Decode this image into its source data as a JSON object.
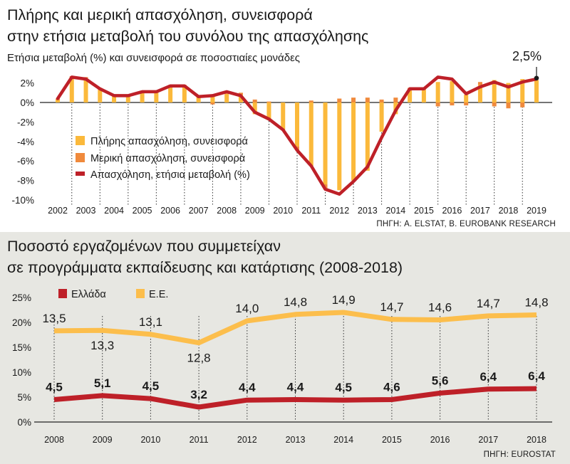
{
  "colors": {
    "full_time": "#fbb93b",
    "part_time": "#f08a3c",
    "employment_line": "#be2028",
    "greece_line": "#be2028",
    "eu_line": "#fcbe4c",
    "bottom_bg": "#e7e7e2",
    "grid": "#333333"
  },
  "chart_data": [
    {
      "type": "bar",
      "title": "Πλήρης και μερική απασχόληση, συνεισφορά στην ετήσια μεταβολή του συνόλου της απασχόλησης",
      "title_lines": [
        "Πλήρης και μερική απασχόληση, συνεισφορά",
        "στην ετήσια μεταβολή του συνόλου της απασχόλησης"
      ],
      "subtitle": "Ετήσια μεταβολή (%) και συνεισφορά σε ποσοστιαίες μονάδες",
      "source": "ΠΗΓΗ: A. ELSTAT, B. EUROBANK RESEARCH",
      "year_labels": [
        "2002",
        "2003",
        "2004",
        "2005",
        "2006",
        "2007",
        "2008",
        "2009",
        "2010",
        "2011",
        "2012",
        "2013",
        "2014",
        "2015",
        "2016",
        "2017",
        "2018",
        "2019"
      ],
      "y_ticks": [
        "2%",
        "0%",
        "-2%",
        "-4%",
        "-6%",
        "-8%",
        "-10%"
      ],
      "ylim": [
        -10,
        3
      ],
      "legend_items": [
        "Πλήρης απασχόληση, συνεισφορά",
        "Μερική απασχόληση, συνεισφορά",
        "Απασχόληση, ετήσια μεταβολή (%)"
      ],
      "x": [
        2002,
        2002.5,
        2003,
        2003.5,
        2004,
        2004.5,
        2005,
        2005.5,
        2006,
        2006.5,
        2007,
        2007.5,
        2008,
        2008.5,
        2009,
        2009.5,
        2010,
        2010.5,
        2011,
        2011.5,
        2012,
        2012.5,
        2013,
        2013.5,
        2014,
        2014.5,
        2015,
        2015.5,
        2016,
        2016.5,
        2017,
        2017.5,
        2018,
        2018.5,
        2019
      ],
      "series": [
        {
          "name": "Πλήρης απασχόληση, συνεισφορά",
          "values": [
            0.3,
            2.5,
            2.3,
            1.3,
            0.7,
            0.7,
            1.0,
            1.0,
            1.5,
            1.6,
            0.6,
            0.6,
            0.9,
            0.8,
            -1.2,
            -1.8,
            -2.7,
            -4.5,
            -6.5,
            -8.4,
            -9.0,
            -8.0,
            -7.0,
            -3.0,
            -1.2,
            1.2,
            1.3,
            2.1,
            2.2,
            0.8,
            1.8,
            2.3,
            2.0,
            2.4,
            2.3
          ]
        },
        {
          "name": "Μερική απασχόληση, συνεισφορά",
          "values": [
            0.1,
            0.2,
            0.3,
            0.2,
            0.1,
            0.1,
            0.2,
            0.2,
            0.3,
            0.2,
            0.1,
            -0.2,
            0.2,
            0.2,
            0.3,
            0.1,
            -0.1,
            -0.4,
            0.2,
            -0.4,
            0.4,
            0.5,
            0.5,
            0.3,
            0.5,
            0.3,
            0.2,
            -0.4,
            -0.3,
            -0.3,
            0.3,
            -0.4,
            -0.6,
            -0.5,
            0.0
          ]
        },
        {
          "name": "Απασχόληση, ετήσια μεταβολή (%)",
          "values": [
            0.4,
            2.6,
            2.4,
            1.4,
            0.7,
            0.7,
            1.1,
            1.1,
            1.7,
            1.7,
            0.6,
            0.7,
            1.1,
            0.7,
            -1.0,
            -1.7,
            -2.8,
            -4.9,
            -6.5,
            -8.9,
            -9.4,
            -8.1,
            -6.6,
            -3.6,
            -0.8,
            1.4,
            1.4,
            2.6,
            2.4,
            0.9,
            1.6,
            2.1,
            1.6,
            2.1,
            2.4
          ]
        }
      ],
      "callout": "2,5%",
      "callout_value": 2.5
    },
    {
      "type": "line",
      "title": "Ποσοστό εργαζομένων που συμμετείχαν σε προγράμματα εκπαίδευσης και κατάρτισης (2008-2018)",
      "title_lines": [
        "Ποσοστό εργαζομένων που συμμετείχαν",
        "σε προγράμματα εκπαίδευσης και κατάρτισης (2008-2018)"
      ],
      "source": "ΠΗΓΗ: EUROSTAT",
      "x": [
        "2008",
        "2009",
        "2010",
        "2011",
        "2012",
        "2013",
        "2014",
        "2015",
        "2016",
        "2017",
        "2018"
      ],
      "y_ticks": [
        "25%",
        "20%",
        "15%",
        "10%",
        "5%",
        "0%"
      ],
      "ylim": [
        0,
        25
      ],
      "series": [
        {
          "name": "Ελλάδα",
          "values": [
            4.5,
            5.1,
            4.5,
            3.2,
            4.4,
            4.4,
            4.5,
            4.6,
            5.6,
            6.4,
            6.4
          ],
          "labels": [
            "4,5",
            "5,1",
            "4,5",
            "3,2",
            "4,4",
            "4,4",
            "4,5",
            "4,6",
            "5,6",
            "6,4",
            "6,4"
          ],
          "line_values": [
            4.5,
            5.3,
            4.7,
            3.0,
            4.4,
            4.5,
            4.4,
            4.5,
            5.8,
            6.6,
            6.7
          ]
        },
        {
          "name": "Ε.Ε.",
          "values": [
            13.5,
            13.3,
            13.1,
            12.8,
            14.0,
            14.8,
            14.9,
            14.7,
            14.6,
            14.7,
            14.8
          ],
          "labels": [
            "13,5",
            "13,3",
            "13,1",
            "12,8",
            "14,0",
            "14,8",
            "14,9",
            "14,7",
            "14,6",
            "14,7",
            "14,8"
          ],
          "line_values": [
            18.3,
            18.4,
            17.6,
            15.9,
            20.3,
            21.6,
            22.0,
            20.6,
            20.5,
            21.3,
            21.5
          ]
        }
      ]
    }
  ]
}
